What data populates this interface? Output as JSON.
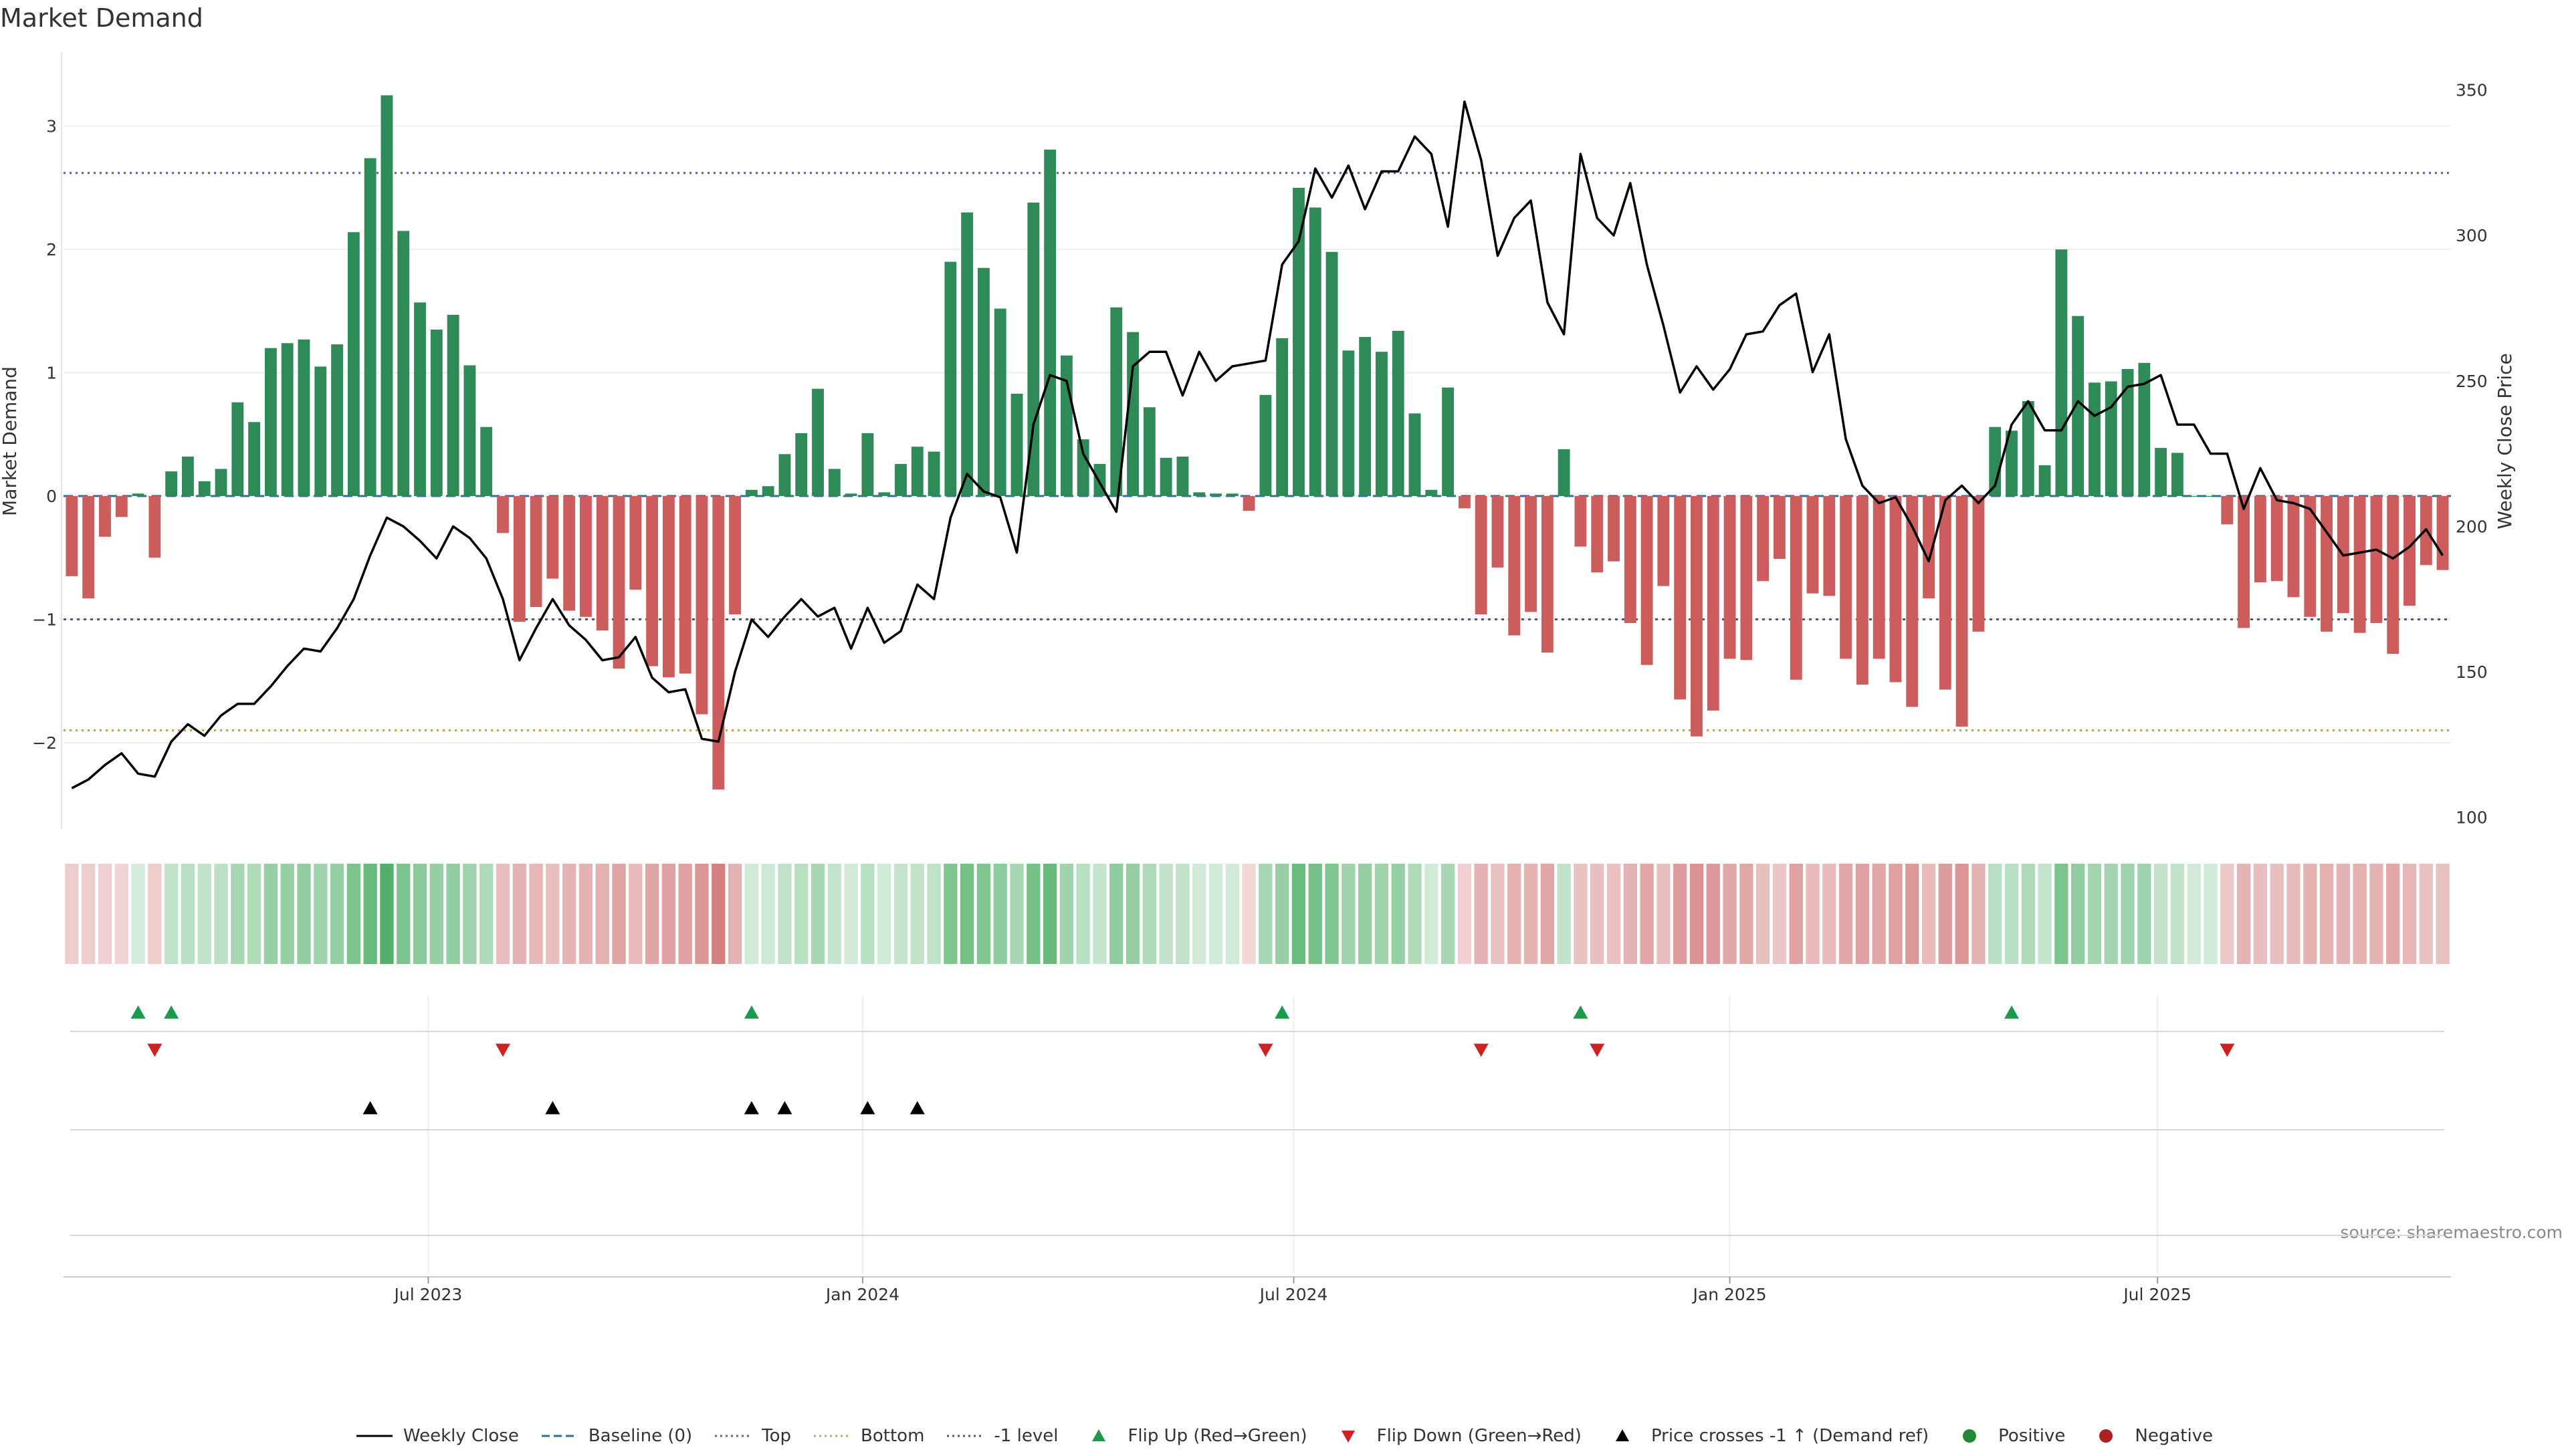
{
  "title": "Market Demand",
  "source_note": "source: sharemaestro.com",
  "colors": {
    "positive": "#2e8b57",
    "negative": "#cd5c5c",
    "price": "#000000",
    "top_line": "#5b5ea6",
    "bottom_line": "#e69a2e",
    "minus1_line": "#555577",
    "baseline": "#2f6f9f",
    "flip_up": "#1a9a4a",
    "flip_down": "#cc2222",
    "cross": "#000000"
  },
  "legend": [
    {
      "label": "Weekly Close",
      "kind": "line",
      "color": "#000000"
    },
    {
      "label": "Baseline (0)",
      "kind": "dash",
      "color": "#2f6f9f"
    },
    {
      "label": "Top",
      "kind": "dot",
      "color": "#5b5ea6"
    },
    {
      "label": "Bottom",
      "kind": "dot",
      "color": "#e69a2e"
    },
    {
      "label": "-1 level",
      "kind": "dot",
      "color": "#555577"
    },
    {
      "label": "Flip Up (Red→Green)",
      "kind": "tri-up",
      "color": "#1a9a4a"
    },
    {
      "label": "Flip Down (Green→Red)",
      "kind": "tri-down",
      "color": "#cc2222"
    },
    {
      "label": "Price crosses -1 ↑ (Demand ref)",
      "kind": "tri-up",
      "color": "#000000"
    },
    {
      "label": "Positive",
      "kind": "circle",
      "color": "#228833"
    },
    {
      "label": "Negative",
      "kind": "circle",
      "color": "#aa2222"
    }
  ],
  "chart_data": {
    "type": "bar",
    "title": "Market Demand",
    "ylabel": "Market Demand",
    "y2label": "Weekly Close Price",
    "ylim": [
      -2.7,
      3.6
    ],
    "y2lim": [
      96,
      363
    ],
    "yticks": [
      -2,
      -1,
      0,
      1,
      2,
      3
    ],
    "yticklabels": [
      "−2",
      "−1",
      "0",
      "1",
      "2",
      "3"
    ],
    "y2ticks": [
      100,
      150,
      200,
      250,
      300,
      350
    ],
    "reference_lines": {
      "top": 2.62,
      "bottom": -1.9,
      "minus1": -1.0,
      "baseline": 0
    },
    "xticks": [
      {
        "index": 21.5,
        "label": "Jul 2023"
      },
      {
        "index": 47.7,
        "label": "Jan 2024"
      },
      {
        "index": 73.7,
        "label": "Jul 2024"
      },
      {
        "index": 100,
        "label": "Jan 2025"
      },
      {
        "index": 125.8,
        "label": "Jul 2025"
      }
    ],
    "series": [
      {
        "name": "Market Demand",
        "values": [
          -0.65,
          -0.83,
          -0.33,
          -0.17,
          0.02,
          -0.5,
          0.2,
          0.32,
          0.12,
          0.22,
          0.76,
          0.6,
          1.2,
          1.24,
          1.27,
          1.05,
          1.23,
          2.14,
          2.74,
          3.25,
          2.15,
          1.57,
          1.35,
          1.47,
          1.06,
          0.56,
          -0.3,
          -1.02,
          -0.9,
          -0.67,
          -0.93,
          -0.98,
          -1.09,
          -1.4,
          -0.76,
          -1.38,
          -1.47,
          -1.44,
          -1.77,
          -2.38,
          -0.96,
          0.05,
          0.08,
          0.34,
          0.51,
          0.87,
          0.22,
          0.02,
          0.51,
          0.03,
          0.26,
          0.4,
          0.36,
          1.9,
          2.3,
          1.85,
          1.52,
          0.83,
          2.38,
          2.81,
          1.14,
          0.46,
          0.26,
          1.53,
          1.33,
          0.72,
          0.31,
          0.32,
          0.03,
          0.02,
          0.02,
          -0.12,
          0.82,
          1.28,
          2.5,
          2.34,
          1.98,
          1.18,
          1.29,
          1.17,
          1.34,
          0.67,
          0.05,
          0.88,
          -0.1,
          -0.96,
          -0.58,
          -1.13,
          -0.94,
          -1.27,
          0.38,
          -0.41,
          -0.62,
          -0.53,
          -1.03,
          -1.37,
          -0.73,
          -1.65,
          -1.95,
          -1.74,
          -1.32,
          -1.33,
          -0.69,
          -0.51,
          -1.49,
          -0.79,
          -0.81,
          -1.32,
          -1.53,
          -1.32,
          -1.51,
          -1.71,
          -0.83,
          -1.57,
          -1.87,
          -1.1,
          0.56,
          0.53,
          0.77,
          0.25,
          2.0,
          1.46,
          0.92,
          0.93,
          1.03,
          1.08,
          0.39,
          0.35,
          0.0,
          0.0,
          -0.23,
          -1.07,
          -0.7,
          -0.69,
          -0.82,
          -0.98,
          -1.1,
          -0.95,
          -1.11,
          -1.03,
          -1.28,
          -0.89,
          -0.56,
          -0.6
        ]
      },
      {
        "name": "Weekly Close",
        "values": [
          110,
          113,
          118,
          122,
          115,
          114,
          126,
          132,
          128,
          135,
          139,
          139,
          145,
          152,
          158,
          157,
          165,
          175,
          190,
          203,
          200,
          195,
          189,
          200,
          196,
          189,
          175,
          154,
          165,
          175,
          166,
          161,
          154,
          155,
          162,
          148,
          143,
          144,
          127,
          126,
          150,
          168,
          162,
          169,
          175,
          169,
          172,
          158,
          172,
          160,
          164,
          180,
          175,
          203,
          218,
          212,
          210,
          191,
          235,
          252,
          250,
          225,
          215,
          205,
          255,
          260,
          260,
          245,
          260,
          250,
          255,
          256,
          257,
          290,
          298,
          323,
          313,
          324,
          309,
          322,
          322,
          334,
          328,
          303,
          346,
          326,
          293,
          306,
          312,
          277,
          266,
          328,
          306,
          300,
          318,
          290,
          269,
          246,
          255,
          247,
          254,
          266,
          267,
          276,
          280,
          253,
          266,
          230,
          214,
          208,
          210,
          200,
          188,
          209,
          214,
          208,
          214,
          235,
          243,
          233,
          233,
          243,
          238,
          241,
          248,
          249,
          252,
          235,
          235,
          225,
          225,
          206,
          220,
          209,
          208,
          206,
          198,
          190,
          191,
          192,
          189,
          193,
          199,
          190
        ]
      }
    ],
    "heat_strip": [
      0.28,
      0.28,
      0.26,
      0.24,
      0.2,
      0.28,
      0.3,
      0.34,
      0.3,
      0.32,
      0.42,
      0.38,
      0.5,
      0.5,
      0.52,
      0.46,
      0.5,
      0.62,
      0.72,
      0.82,
      0.62,
      0.55,
      0.5,
      0.52,
      0.46,
      0.38,
      0.36,
      0.42,
      0.4,
      0.36,
      0.42,
      0.42,
      0.44,
      0.5,
      0.38,
      0.5,
      0.52,
      0.52,
      0.58,
      0.7,
      0.42,
      0.22,
      0.24,
      0.3,
      0.34,
      0.42,
      0.28,
      0.22,
      0.34,
      0.22,
      0.28,
      0.3,
      0.3,
      0.6,
      0.66,
      0.6,
      0.54,
      0.42,
      0.66,
      0.72,
      0.46,
      0.34,
      0.28,
      0.54,
      0.5,
      0.38,
      0.3,
      0.3,
      0.22,
      0.22,
      0.22,
      0.22,
      0.42,
      0.5,
      0.7,
      0.66,
      0.6,
      0.46,
      0.5,
      0.46,
      0.5,
      0.38,
      0.22,
      0.42,
      0.26,
      0.42,
      0.34,
      0.44,
      0.42,
      0.48,
      0.3,
      0.34,
      0.36,
      0.34,
      0.42,
      0.48,
      0.36,
      0.54,
      0.6,
      0.56,
      0.48,
      0.48,
      0.36,
      0.32,
      0.52,
      0.38,
      0.38,
      0.48,
      0.52,
      0.48,
      0.52,
      0.56,
      0.38,
      0.54,
      0.58,
      0.42,
      0.34,
      0.34,
      0.38,
      0.28,
      0.62,
      0.52,
      0.44,
      0.44,
      0.46,
      0.46,
      0.3,
      0.3,
      0.22,
      0.22,
      0.3,
      0.42,
      0.36,
      0.36,
      0.38,
      0.42,
      0.44,
      0.42,
      0.44,
      0.42,
      0.48,
      0.4,
      0.34,
      0.34
    ],
    "flip_up": [
      4,
      6,
      41,
      73,
      91,
      117
    ],
    "flip_down": [
      5,
      26,
      72,
      85,
      92,
      130
    ],
    "price_cross_up": [
      18,
      29,
      41,
      43,
      48,
      51
    ]
  }
}
